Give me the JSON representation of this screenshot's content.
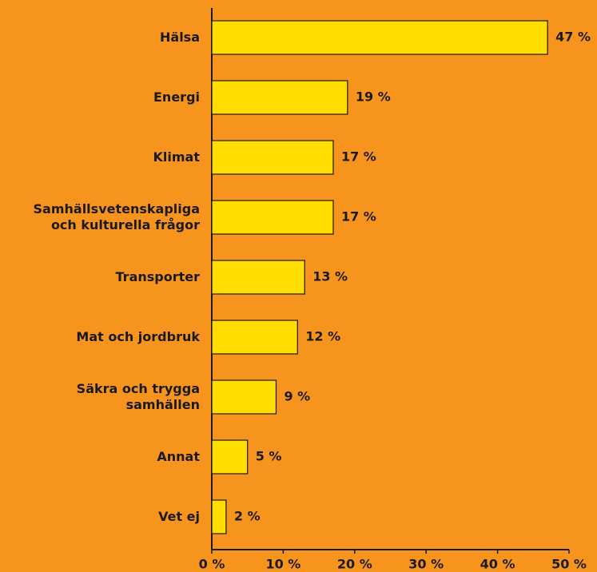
{
  "chart_data": {
    "type": "bar",
    "orientation": "horizontal",
    "categories": [
      "Hälsa",
      "Energi",
      "Klimat",
      "Samhällsvetenskapliga\noch kulturella frågor",
      "Transporter",
      "Mat och jordbruk",
      "Säkra och trygga\nsamhällen",
      "Annat",
      "Vet ej"
    ],
    "values": [
      47,
      19,
      17,
      17,
      13,
      12,
      9,
      5,
      2
    ],
    "value_labels": [
      "47 %",
      "19 %",
      "17 %",
      "17 %",
      "13 %",
      "12 %",
      "9 %",
      "5 %",
      "2 %"
    ],
    "color": "#ffdd00",
    "xlim": [
      0,
      50
    ],
    "xticks": [
      {
        "value": 0,
        "label": "0 %"
      },
      {
        "value": 10,
        "label": "10 %"
      },
      {
        "value": 20,
        "label": "20 %"
      },
      {
        "value": 30,
        "label": "30 %"
      },
      {
        "value": 40,
        "label": "40 %"
      },
      {
        "value": 50,
        "label": "50 %"
      }
    ],
    "grid": false
  }
}
